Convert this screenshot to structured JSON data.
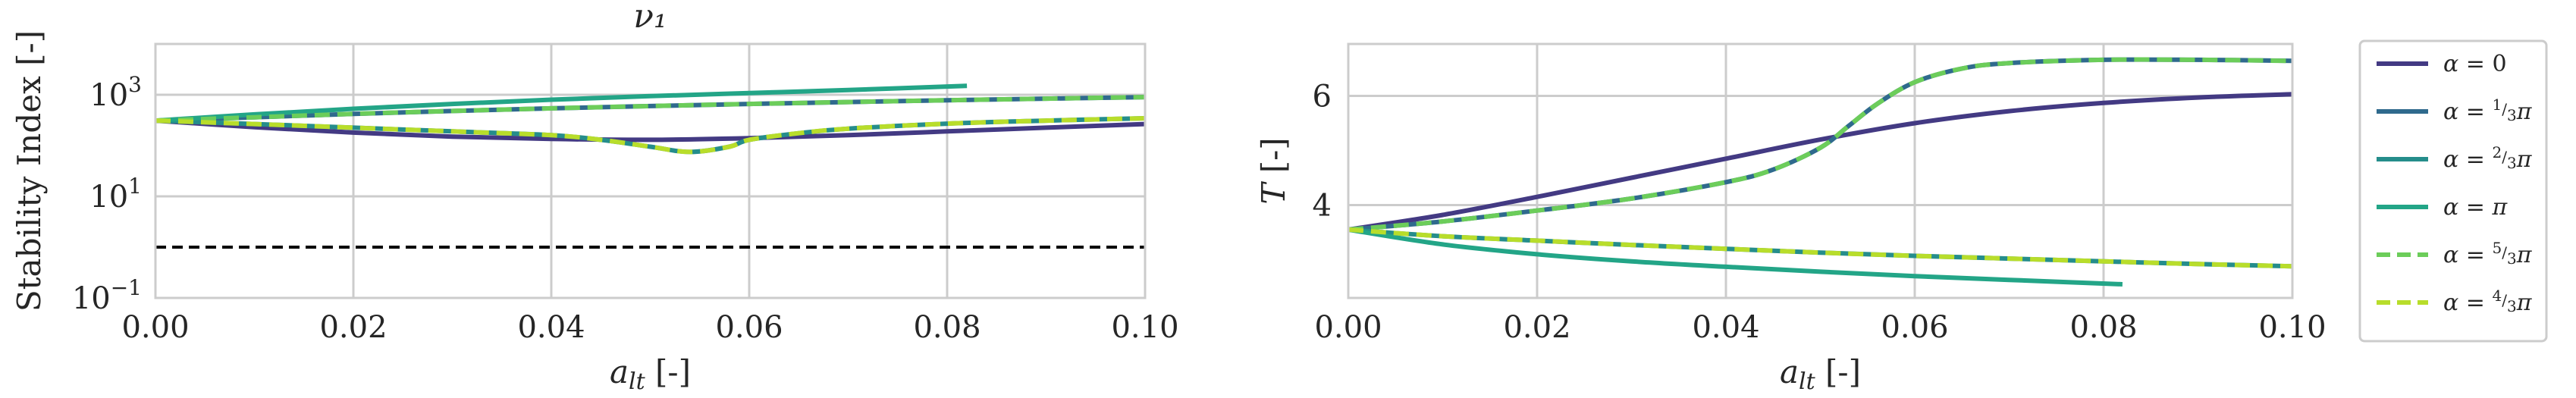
{
  "chart_data": [
    {
      "type": "line",
      "title": "ν₁",
      "xlabel": "a_lt [-]",
      "ylabel": "Stability Index [-]",
      "yscale": "log",
      "xlim": [
        0.0,
        0.1
      ],
      "ylim": [
        0.1,
        10000
      ],
      "grid": true,
      "xticks": [
        "0.00",
        "0.02",
        "0.04",
        "0.06",
        "0.08",
        "0.10"
      ],
      "yticks": [
        {
          "value": 0.1,
          "base": "10",
          "exp": "−1"
        },
        {
          "value": 10,
          "base": "10",
          "exp": "1"
        },
        {
          "value": 1000,
          "base": "10",
          "exp": "3"
        }
      ],
      "reference_line": {
        "y": 1,
        "style": "dashed",
        "color": "#000000"
      },
      "series": [
        {
          "name": "α = 0",
          "color": "#433a83",
          "dash": "solid",
          "x": [
            0,
            0.01,
            0.02,
            0.03,
            0.04,
            0.05,
            0.06,
            0.07,
            0.08,
            0.09,
            0.1
          ],
          "y": [
            310,
            230,
            180,
            150,
            135,
            130,
            140,
            160,
            190,
            225,
            265
          ]
        },
        {
          "name": "α = 1/3 π",
          "color": "#2f6a8d",
          "dash": "solid",
          "x": [
            0,
            0.01,
            0.02,
            0.03,
            0.04,
            0.05,
            0.06,
            0.07,
            0.08,
            0.09,
            0.1
          ],
          "y": [
            310,
            360,
            420,
            480,
            540,
            600,
            660,
            720,
            780,
            840,
            900
          ]
        },
        {
          "name": "α = 2/3 π",
          "color": "#258d8b",
          "dash": "solid",
          "x": [
            0,
            0.01,
            0.02,
            0.03,
            0.04,
            0.045,
            0.05,
            0.054,
            0.058,
            0.06,
            0.065,
            0.07,
            0.08,
            0.09,
            0.1
          ],
          "y": [
            310,
            265,
            225,
            190,
            160,
            130,
            95,
            75,
            95,
            130,
            175,
            215,
            270,
            310,
            345
          ]
        },
        {
          "name": "α = π",
          "color": "#23a587",
          "dash": "solid",
          "x": [
            0,
            0.01,
            0.02,
            0.03,
            0.04,
            0.05,
            0.06,
            0.07,
            0.082
          ],
          "y": [
            310,
            410,
            530,
            660,
            800,
            940,
            1080,
            1240,
            1500
          ]
        },
        {
          "name": "α = 5/3 π",
          "color": "#6ccd5a",
          "dash": "dashed",
          "x": [
            0,
            0.01,
            0.02,
            0.03,
            0.04,
            0.05,
            0.06,
            0.07,
            0.08,
            0.09,
            0.1
          ],
          "y": [
            310,
            360,
            420,
            480,
            540,
            600,
            660,
            720,
            780,
            840,
            900
          ]
        },
        {
          "name": "α = 4/3 π",
          "color": "#b8dd2b",
          "dash": "dashed",
          "x": [
            0,
            0.01,
            0.02,
            0.03,
            0.04,
            0.045,
            0.05,
            0.054,
            0.058,
            0.06,
            0.065,
            0.07,
            0.08,
            0.09,
            0.1
          ],
          "y": [
            310,
            265,
            225,
            190,
            160,
            130,
            95,
            75,
            95,
            130,
            175,
            215,
            270,
            310,
            345
          ]
        }
      ]
    },
    {
      "type": "line",
      "title": "",
      "xlabel": "a_lt [-]",
      "ylabel": "T [-]",
      "yscale": "linear",
      "xlim": [
        0.0,
        0.1
      ],
      "ylim": [
        2.3,
        6.95
      ],
      "grid": true,
      "xticks": [
        "0.00",
        "0.02",
        "0.04",
        "0.06",
        "0.08",
        "0.10"
      ],
      "yticks": [
        {
          "value": 4,
          "label": "4"
        },
        {
          "value": 6,
          "label": "6"
        }
      ],
      "series": [
        {
          "name": "α = 0",
          "color": "#433a83",
          "dash": "solid",
          "x": [
            0,
            0.01,
            0.02,
            0.03,
            0.04,
            0.05,
            0.06,
            0.07,
            0.08,
            0.09,
            0.1
          ],
          "y": [
            3.55,
            3.82,
            4.15,
            4.5,
            4.85,
            5.2,
            5.5,
            5.72,
            5.87,
            5.97,
            6.03
          ]
        },
        {
          "name": "α = 1/3 π",
          "color": "#2f6a8d",
          "dash": "solid",
          "x": [
            0,
            0.01,
            0.02,
            0.03,
            0.04,
            0.045,
            0.05,
            0.053,
            0.056,
            0.06,
            0.065,
            0.07,
            0.08,
            0.09,
            0.1
          ],
          "y": [
            3.55,
            3.7,
            3.9,
            4.12,
            4.42,
            4.65,
            5.05,
            5.45,
            5.85,
            6.25,
            6.5,
            6.6,
            6.66,
            6.66,
            6.64
          ]
        },
        {
          "name": "α = 2/3 π",
          "color": "#258d8b",
          "dash": "solid",
          "x": [
            0,
            0.01,
            0.02,
            0.03,
            0.04,
            0.05,
            0.06,
            0.07,
            0.08,
            0.09,
            0.1
          ],
          "y": [
            3.55,
            3.43,
            3.35,
            3.27,
            3.2,
            3.13,
            3.07,
            3.02,
            2.97,
            2.92,
            2.88
          ]
        },
        {
          "name": "α = π",
          "color": "#23a587",
          "dash": "solid",
          "x": [
            0,
            0.01,
            0.02,
            0.03,
            0.04,
            0.05,
            0.06,
            0.07,
            0.082
          ],
          "y": [
            3.55,
            3.28,
            3.1,
            2.97,
            2.87,
            2.78,
            2.7,
            2.63,
            2.55
          ]
        },
        {
          "name": "α = 5/3 π",
          "color": "#6ccd5a",
          "dash": "dashed",
          "x": [
            0,
            0.01,
            0.02,
            0.03,
            0.04,
            0.045,
            0.05,
            0.053,
            0.056,
            0.06,
            0.065,
            0.07,
            0.08,
            0.09,
            0.1
          ],
          "y": [
            3.55,
            3.7,
            3.9,
            4.12,
            4.42,
            4.65,
            5.05,
            5.45,
            5.85,
            6.25,
            6.5,
            6.6,
            6.66,
            6.66,
            6.64
          ]
        },
        {
          "name": "α = 4/3 π",
          "color": "#b8dd2b",
          "dash": "dashed",
          "x": [
            0,
            0.01,
            0.02,
            0.03,
            0.04,
            0.05,
            0.06,
            0.07,
            0.08,
            0.09,
            0.1
          ],
          "y": [
            3.55,
            3.43,
            3.35,
            3.27,
            3.2,
            3.13,
            3.07,
            3.02,
            2.97,
            2.92,
            2.88
          ]
        }
      ]
    }
  ],
  "legend": {
    "placement": "right of right plot",
    "entries": [
      {
        "prefix": "α = ",
        "value": "0",
        "frac": null,
        "suffix": "",
        "color": "#433a83",
        "dash": "solid"
      },
      {
        "prefix": "α = ",
        "value": "",
        "frac": {
          "num": "1",
          "den": "3"
        },
        "suffix": "π",
        "color": "#2f6a8d",
        "dash": "solid"
      },
      {
        "prefix": "α = ",
        "value": "",
        "frac": {
          "num": "2",
          "den": "3"
        },
        "suffix": "π",
        "color": "#258d8b",
        "dash": "solid"
      },
      {
        "prefix": "α = ",
        "value": "π",
        "frac": null,
        "suffix": "",
        "color": "#23a587",
        "dash": "solid"
      },
      {
        "prefix": "α = ",
        "value": "",
        "frac": {
          "num": "5",
          "den": "3"
        },
        "suffix": "π",
        "color": "#6ccd5a",
        "dash": "dashed"
      },
      {
        "prefix": "α = ",
        "value": "",
        "frac": {
          "num": "4",
          "den": "3"
        },
        "suffix": "π",
        "color": "#b8dd2b",
        "dash": "dashed"
      }
    ]
  }
}
